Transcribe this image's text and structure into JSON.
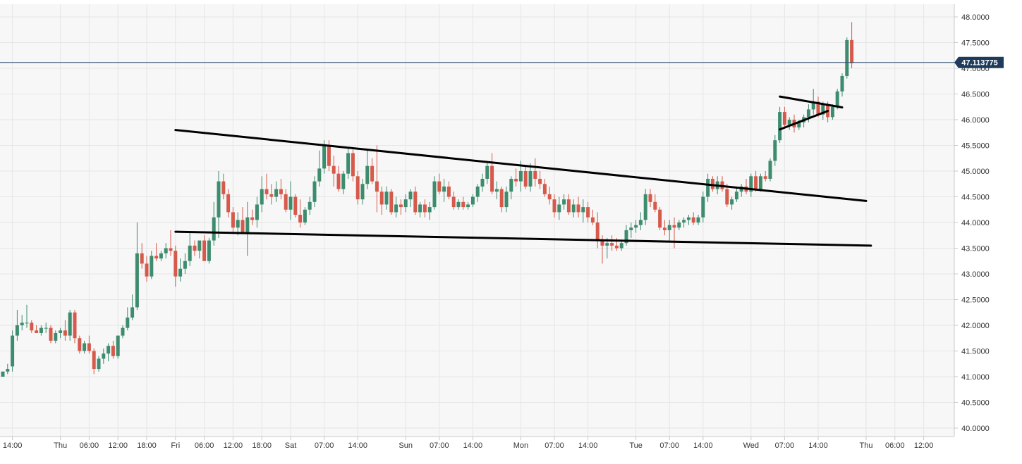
{
  "chart_data": {
    "type": "candlestick",
    "ylim": [
      39.95,
      48.1
    ],
    "grid": true,
    "colors": {
      "up": "#3d8c6e",
      "down": "#d65a4b",
      "grid": "#e6e6e6",
      "background": "#f7f7f7",
      "trendline": "#000000",
      "priceLine": "#2c4a6e",
      "priceTag": "#1f3b5c"
    },
    "y_ticks": [
      "40.0000",
      "40.5000",
      "41.0000",
      "41.5000",
      "42.0000",
      "42.5000",
      "43.0000",
      "43.5000",
      "44.0000",
      "44.5000",
      "45.0000",
      "45.5000",
      "46.0000",
      "46.5000",
      "47.0000",
      "47.5000",
      "48.0000"
    ],
    "x_ticks": [
      {
        "t": 2,
        "label": "14:00"
      },
      {
        "t": 12,
        "label": "Thu"
      },
      {
        "t": 18,
        "label": "06:00"
      },
      {
        "t": 24,
        "label": "12:00"
      },
      {
        "t": 30,
        "label": "18:00"
      },
      {
        "t": 36,
        "label": "Fri"
      },
      {
        "t": 42,
        "label": "06:00"
      },
      {
        "t": 48,
        "label": "12:00"
      },
      {
        "t": 54,
        "label": "18:00"
      },
      {
        "t": 60,
        "label": "Sat"
      },
      {
        "t": 67,
        "label": "07:00"
      },
      {
        "t": 74,
        "label": "14:00"
      },
      {
        "t": 84,
        "label": "Sun"
      },
      {
        "t": 91,
        "label": "07:00"
      },
      {
        "t": 98,
        "label": "14:00"
      },
      {
        "t": 108,
        "label": "Mon"
      },
      {
        "t": 115,
        "label": "07:00"
      },
      {
        "t": 122,
        "label": "14:00"
      },
      {
        "t": 132,
        "label": "Tue"
      },
      {
        "t": 139,
        "label": "07:00"
      },
      {
        "t": 146,
        "label": "14:00"
      },
      {
        "t": 156,
        "label": "Wed"
      },
      {
        "t": 163,
        "label": "07:00"
      },
      {
        "t": 170,
        "label": "14:00"
      },
      {
        "t": 180,
        "label": "Thu"
      },
      {
        "t": 186,
        "label": "06:00"
      },
      {
        "t": 192,
        "label": "12:00"
      }
    ],
    "current_price": 47.113775,
    "current_price_label": "47.113775",
    "candles": [
      [
        0,
        41.0,
        41.1,
        41.0,
        41.1
      ],
      [
        1,
        41.1,
        41.25,
        41.05,
        41.15
      ],
      [
        2,
        41.2,
        41.9,
        41.1,
        41.8
      ],
      [
        3,
        41.8,
        42.3,
        41.7,
        42.0
      ],
      [
        4,
        42.0,
        42.2,
        41.9,
        42.05
      ],
      [
        5,
        42.05,
        42.4,
        41.95,
        42.05
      ],
      [
        6,
        42.05,
        42.1,
        41.85,
        41.9
      ],
      [
        7,
        41.9,
        42.0,
        41.85,
        41.85
      ],
      [
        8,
        41.85,
        42.0,
        41.8,
        41.95
      ],
      [
        9,
        41.95,
        42.05,
        41.85,
        41.95
      ],
      [
        10,
        41.95,
        42.0,
        41.65,
        41.7
      ],
      [
        11,
        41.7,
        41.9,
        41.65,
        41.85
      ],
      [
        12,
        41.85,
        41.95,
        41.75,
        41.9
      ],
      [
        13,
        41.9,
        42.1,
        41.7,
        41.8
      ],
      [
        14,
        41.8,
        42.3,
        41.7,
        42.25
      ],
      [
        15,
        42.25,
        42.3,
        41.65,
        41.75
      ],
      [
        16,
        41.75,
        41.8,
        41.45,
        41.5
      ],
      [
        17,
        41.5,
        41.7,
        41.45,
        41.65
      ],
      [
        18,
        41.65,
        41.8,
        41.45,
        41.5
      ],
      [
        19,
        41.5,
        41.55,
        41.05,
        41.15
      ],
      [
        20,
        41.15,
        41.4,
        41.1,
        41.35
      ],
      [
        21,
        41.35,
        41.55,
        41.25,
        41.45
      ],
      [
        22,
        41.45,
        41.65,
        41.3,
        41.6
      ],
      [
        23,
        41.6,
        41.7,
        41.35,
        41.4
      ],
      [
        24,
        41.4,
        41.8,
        41.35,
        41.8
      ],
      [
        25,
        41.8,
        42.0,
        41.75,
        41.95
      ],
      [
        26,
        41.95,
        42.35,
        41.9,
        42.15
      ],
      [
        27,
        42.15,
        42.6,
        42.1,
        42.35
      ],
      [
        28,
        42.35,
        44.0,
        42.3,
        43.4
      ],
      [
        29,
        43.4,
        43.6,
        43.1,
        43.2
      ],
      [
        30,
        43.2,
        43.35,
        42.85,
        42.95
      ],
      [
        31,
        42.95,
        43.45,
        42.9,
        43.35
      ],
      [
        32,
        43.35,
        43.6,
        43.25,
        43.3
      ],
      [
        33,
        43.3,
        43.45,
        43.25,
        43.4
      ],
      [
        34,
        43.4,
        43.6,
        43.3,
        43.5
      ],
      [
        35,
        43.5,
        43.85,
        43.35,
        43.45
      ],
      [
        36,
        43.45,
        43.55,
        42.75,
        42.95
      ],
      [
        37,
        42.95,
        43.3,
        42.85,
        43.1
      ],
      [
        38,
        43.1,
        43.4,
        43.0,
        43.25
      ],
      [
        39,
        43.25,
        43.8,
        43.15,
        43.55
      ],
      [
        40,
        43.55,
        43.65,
        43.35,
        43.45
      ],
      [
        41,
        43.45,
        43.6,
        43.3,
        43.65
      ],
      [
        42,
        43.65,
        43.75,
        43.25,
        43.25
      ],
      [
        43,
        43.25,
        43.7,
        43.2,
        43.65
      ],
      [
        44,
        43.65,
        44.4,
        43.55,
        44.1
      ],
      [
        45,
        44.1,
        45.0,
        43.7,
        44.8
      ],
      [
        46,
        44.8,
        44.95,
        44.45,
        44.55
      ],
      [
        47,
        44.55,
        44.65,
        44.1,
        44.2
      ],
      [
        48,
        44.2,
        44.3,
        43.8,
        43.9
      ],
      [
        49,
        43.9,
        44.2,
        43.75,
        44.05
      ],
      [
        50,
        44.05,
        44.3,
        43.8,
        43.8
      ],
      [
        51,
        43.8,
        44.4,
        43.35,
        44.1
      ],
      [
        52,
        44.1,
        44.25,
        43.95,
        44.05
      ],
      [
        53,
        44.05,
        44.5,
        43.9,
        44.35
      ],
      [
        54,
        44.35,
        44.9,
        44.2,
        44.65
      ],
      [
        55,
        44.65,
        44.95,
        44.45,
        44.55
      ],
      [
        56,
        44.55,
        44.75,
        44.35,
        44.5
      ],
      [
        57,
        44.5,
        44.8,
        44.4,
        44.65
      ],
      [
        58,
        44.65,
        44.85,
        44.45,
        44.55
      ],
      [
        59,
        44.55,
        44.65,
        44.2,
        44.25
      ],
      [
        60,
        44.25,
        44.8,
        44.05,
        44.5
      ],
      [
        61,
        44.5,
        44.55,
        44.1,
        44.15
      ],
      [
        62,
        44.15,
        44.45,
        43.9,
        44.0
      ],
      [
        63,
        44.0,
        44.3,
        43.95,
        44.25
      ],
      [
        64,
        44.25,
        44.5,
        44.15,
        44.4
      ],
      [
        65,
        44.4,
        44.9,
        44.3,
        44.8
      ],
      [
        66,
        44.8,
        45.4,
        44.7,
        45.05
      ],
      [
        67,
        45.05,
        45.6,
        44.95,
        45.5
      ],
      [
        68,
        45.5,
        45.6,
        45.0,
        45.1
      ],
      [
        69,
        45.1,
        45.3,
        44.7,
        44.95
      ],
      [
        70,
        44.95,
        45.1,
        44.6,
        44.65
      ],
      [
        71,
        44.65,
        45.0,
        44.55,
        44.95
      ],
      [
        72,
        44.95,
        45.45,
        44.85,
        45.35
      ],
      [
        73,
        45.35,
        45.45,
        44.8,
        44.9
      ],
      [
        74,
        44.9,
        45.0,
        44.35,
        44.45
      ],
      [
        75,
        44.45,
        44.85,
        44.35,
        44.75
      ],
      [
        76,
        44.75,
        45.4,
        44.65,
        45.1
      ],
      [
        77,
        45.1,
        45.25,
        44.75,
        44.8
      ],
      [
        78,
        44.8,
        45.5,
        44.2,
        44.6
      ],
      [
        79,
        44.6,
        44.7,
        44.15,
        44.35
      ],
      [
        80,
        44.35,
        44.7,
        44.25,
        44.6
      ],
      [
        81,
        44.6,
        44.65,
        44.15,
        44.2
      ],
      [
        82,
        44.2,
        44.5,
        44.1,
        44.35
      ],
      [
        83,
        44.35,
        44.45,
        44.15,
        44.3
      ],
      [
        84,
        44.3,
        44.55,
        44.2,
        44.45
      ],
      [
        85,
        44.45,
        44.65,
        44.3,
        44.6
      ],
      [
        86,
        44.6,
        44.7,
        44.15,
        44.2
      ],
      [
        87,
        44.2,
        44.4,
        44.1,
        44.35
      ],
      [
        88,
        44.35,
        44.45,
        44.1,
        44.2
      ],
      [
        89,
        44.2,
        44.4,
        44.05,
        44.3
      ],
      [
        90,
        44.3,
        44.9,
        44.25,
        44.8
      ],
      [
        91,
        44.8,
        44.95,
        44.55,
        44.6
      ],
      [
        92,
        44.6,
        44.85,
        44.4,
        44.7
      ],
      [
        93,
        44.7,
        44.8,
        44.45,
        44.5
      ],
      [
        94,
        44.5,
        44.6,
        44.25,
        44.3
      ],
      [
        95,
        44.3,
        44.45,
        44.25,
        44.4
      ],
      [
        96,
        44.4,
        44.5,
        44.25,
        44.3
      ],
      [
        97,
        44.3,
        44.4,
        44.25,
        44.35
      ],
      [
        98,
        44.35,
        44.55,
        44.3,
        44.5
      ],
      [
        99,
        44.5,
        44.75,
        44.4,
        44.7
      ],
      [
        100,
        44.7,
        44.95,
        44.6,
        44.85
      ],
      [
        101,
        44.85,
        45.2,
        44.75,
        45.1
      ],
      [
        102,
        45.1,
        45.35,
        44.55,
        44.6
      ],
      [
        103,
        44.6,
        44.8,
        44.45,
        44.65
      ],
      [
        104,
        44.65,
        44.7,
        44.2,
        44.3
      ],
      [
        105,
        44.3,
        44.7,
        44.2,
        44.6
      ],
      [
        106,
        44.6,
        44.9,
        44.45,
        44.85
      ],
      [
        107,
        44.85,
        45.05,
        44.7,
        44.8
      ],
      [
        108,
        44.8,
        45.2,
        44.6,
        45.0
      ],
      [
        109,
        45.0,
        45.1,
        44.65,
        44.7
      ],
      [
        110,
        44.7,
        45.15,
        44.6,
        45.0
      ],
      [
        111,
        45.0,
        45.25,
        44.7,
        44.85
      ],
      [
        112,
        44.85,
        45.0,
        44.65,
        44.75
      ],
      [
        113,
        44.75,
        44.85,
        44.5,
        44.55
      ],
      [
        114,
        44.55,
        44.7,
        44.35,
        44.45
      ],
      [
        115,
        44.45,
        44.55,
        44.1,
        44.2
      ],
      [
        116,
        44.2,
        44.5,
        44.05,
        44.35
      ],
      [
        117,
        44.35,
        44.55,
        44.25,
        44.45
      ],
      [
        118,
        44.45,
        44.55,
        44.15,
        44.2
      ],
      [
        119,
        44.2,
        44.45,
        44.1,
        44.35
      ],
      [
        120,
        44.35,
        44.5,
        44.1,
        44.2
      ],
      [
        121,
        44.2,
        44.45,
        44.0,
        44.3
      ],
      [
        122,
        44.3,
        44.4,
        44.0,
        44.1
      ],
      [
        123,
        44.1,
        44.25,
        43.95,
        44.0
      ],
      [
        124,
        44.0,
        44.2,
        43.5,
        43.65
      ],
      [
        125,
        43.65,
        43.75,
        43.2,
        43.55
      ],
      [
        126,
        43.55,
        43.7,
        43.3,
        43.6
      ],
      [
        127,
        43.6,
        43.75,
        43.45,
        43.55
      ],
      [
        128,
        43.55,
        43.7,
        43.45,
        43.5
      ],
      [
        129,
        43.5,
        43.65,
        43.45,
        43.6
      ],
      [
        130,
        43.6,
        43.95,
        43.55,
        43.85
      ],
      [
        131,
        43.85,
        44.0,
        43.7,
        43.9
      ],
      [
        132,
        43.9,
        44.05,
        43.8,
        43.95
      ],
      [
        133,
        43.95,
        44.2,
        43.85,
        44.05
      ],
      [
        134,
        44.05,
        44.65,
        43.95,
        44.55
      ],
      [
        135,
        44.55,
        44.65,
        44.3,
        44.4
      ],
      [
        136,
        44.4,
        44.55,
        44.2,
        44.25
      ],
      [
        137,
        44.25,
        44.3,
        43.85,
        43.9
      ],
      [
        138,
        43.9,
        44.05,
        43.75,
        43.85
      ],
      [
        139,
        43.85,
        44.05,
        43.65,
        43.95
      ],
      [
        140,
        43.95,
        44.1,
        43.5,
        43.9
      ],
      [
        141,
        43.9,
        44.05,
        43.85,
        44.0
      ],
      [
        142,
        44.0,
        44.1,
        43.9,
        44.05
      ],
      [
        143,
        44.05,
        44.15,
        43.95,
        44.1
      ],
      [
        144,
        44.1,
        44.2,
        43.95,
        44.0
      ],
      [
        145,
        44.0,
        44.15,
        43.95,
        44.1
      ],
      [
        146,
        44.1,
        44.6,
        44.0,
        44.5
      ],
      [
        147,
        44.5,
        44.95,
        44.4,
        44.85
      ],
      [
        148,
        44.85,
        44.9,
        44.6,
        44.65
      ],
      [
        149,
        44.65,
        44.9,
        44.55,
        44.8
      ],
      [
        150,
        44.8,
        44.9,
        44.6,
        44.65
      ],
      [
        151,
        44.65,
        44.75,
        44.3,
        44.35
      ],
      [
        152,
        44.35,
        44.5,
        44.25,
        44.45
      ],
      [
        153,
        44.45,
        44.7,
        44.4,
        44.6
      ],
      [
        154,
        44.6,
        44.75,
        44.5,
        44.7
      ],
      [
        155,
        44.7,
        44.85,
        44.55,
        44.6
      ],
      [
        156,
        44.6,
        44.95,
        44.5,
        44.9
      ],
      [
        157,
        44.9,
        45.0,
        44.6,
        44.65
      ],
      [
        158,
        44.65,
        44.95,
        44.6,
        44.9
      ],
      [
        159,
        44.9,
        45.0,
        44.8,
        44.85
      ],
      [
        160,
        44.85,
        45.25,
        44.8,
        45.2
      ],
      [
        161,
        45.2,
        45.7,
        45.1,
        45.6
      ],
      [
        162,
        45.6,
        46.25,
        45.55,
        46.15
      ],
      [
        163,
        46.15,
        46.25,
        45.85,
        45.9
      ],
      [
        164,
        45.9,
        46.05,
        45.8,
        46.0
      ],
      [
        165,
        46.0,
        46.1,
        45.75,
        45.85
      ],
      [
        166,
        45.85,
        46.0,
        45.8,
        45.95
      ],
      [
        167,
        45.95,
        46.1,
        45.85,
        46.05
      ],
      [
        168,
        46.05,
        46.3,
        45.95,
        46.2
      ],
      [
        169,
        46.2,
        46.6,
        46.1,
        46.35
      ],
      [
        170,
        46.35,
        46.45,
        46.05,
        46.1
      ],
      [
        171,
        46.1,
        46.35,
        46.0,
        46.3
      ],
      [
        172,
        46.3,
        46.35,
        45.95,
        46.05
      ],
      [
        173,
        46.05,
        46.3,
        46.0,
        46.25
      ],
      [
        174,
        46.25,
        46.6,
        46.2,
        46.55
      ],
      [
        175,
        46.55,
        46.9,
        46.45,
        46.85
      ],
      [
        176,
        46.85,
        47.6,
        46.8,
        47.55
      ],
      [
        177,
        47.55,
        47.9,
        47.0,
        47.1
      ]
    ],
    "trendlines": [
      [
        36.0,
        45.8,
        180.0,
        44.42
      ],
      [
        36.0,
        43.82,
        181.0,
        43.55
      ],
      [
        162.0,
        46.45,
        175.0,
        46.24
      ],
      [
        162.0,
        45.81,
        172.0,
        46.17
      ]
    ]
  }
}
